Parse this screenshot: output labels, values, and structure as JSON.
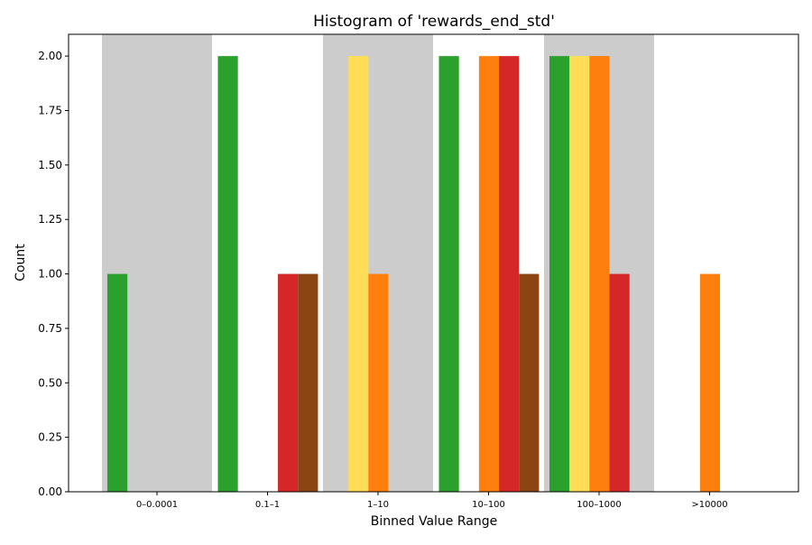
{
  "chart_data": {
    "type": "bar",
    "title": "Histogram of 'rewards_end_std'",
    "xlabel": "Binned Value Range",
    "ylabel": "Count",
    "categories": [
      "0–0.0001",
      "0.1–1",
      "1–10",
      "10–100",
      "100–1000",
      ">10000"
    ],
    "ylim": [
      0,
      2.1
    ],
    "yticks": [
      0.0,
      0.25,
      0.5,
      0.75,
      1.0,
      1.25,
      1.5,
      1.75,
      2.0
    ],
    "ytick_labels": [
      "0.00",
      "0.25",
      "0.50",
      "0.75",
      "1.00",
      "1.25",
      "1.50",
      "1.75",
      "2.00"
    ],
    "shaded_categories": [
      "0–0.0001",
      "1–10",
      "100–1000"
    ],
    "shade_color": "#cccccc",
    "grid": false,
    "legend": "none",
    "series": [
      {
        "color": "#2ca02c",
        "values": [
          1,
          2,
          0,
          2,
          2,
          0
        ]
      },
      {
        "color": "#ffdd57",
        "values": [
          0,
          0,
          2,
          0,
          2,
          0
        ]
      },
      {
        "color": "#ff7f0e",
        "values": [
          0,
          0,
          1,
          2,
          2,
          1
        ]
      },
      {
        "color": "#d62728",
        "values": [
          0,
          1,
          0,
          2,
          1,
          0
        ]
      },
      {
        "color": "#8b4513",
        "values": [
          0,
          1,
          0,
          1,
          0,
          0
        ]
      }
    ]
  }
}
